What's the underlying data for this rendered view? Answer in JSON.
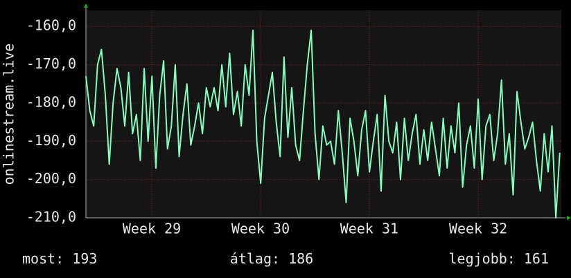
{
  "chart_data": {
    "type": "line",
    "y_label": "onlinestream.live",
    "ylim": [
      -210,
      -155.8
    ],
    "yticks": [
      {
        "value": -210,
        "label": "-210,0"
      },
      {
        "value": -200,
        "label": "-200,0"
      },
      {
        "value": -190,
        "label": "-190,0"
      },
      {
        "value": -180,
        "label": "-180,0"
      },
      {
        "value": -170,
        "label": "-170,0"
      },
      {
        "value": -160,
        "label": "-160,0"
      }
    ],
    "xlim": [
      0,
      30.6
    ],
    "xticks": [
      {
        "value": 4.24,
        "label": "Week 29"
      },
      {
        "value": 11.24,
        "label": "Week 30"
      },
      {
        "value": 18.24,
        "label": "Week 31"
      },
      {
        "value": 25.25,
        "label": "Week 32"
      }
    ],
    "grid": true,
    "x": [
      0,
      0.25,
      0.5,
      0.75,
      1,
      1.25,
      1.5,
      1.75,
      2,
      2.25,
      2.5,
      2.75,
      3,
      3.25,
      3.5,
      3.75,
      4,
      4.25,
      4.5,
      4.75,
      5,
      5.25,
      5.5,
      5.75,
      6,
      6.25,
      6.5,
      6.75,
      7,
      7.25,
      7.5,
      7.75,
      8,
      8.25,
      8.5,
      8.75,
      9,
      9.25,
      9.5,
      9.75,
      10,
      10.25,
      10.5,
      10.75,
      11,
      11.25,
      11.5,
      11.75,
      12,
      12.25,
      12.5,
      12.75,
      13,
      13.25,
      13.5,
      13.75,
      14,
      14.25,
      14.5,
      14.75,
      15,
      15.25,
      15.5,
      15.75,
      16,
      16.25,
      16.5,
      16.75,
      17,
      17.25,
      17.5,
      17.75,
      18,
      18.25,
      18.5,
      18.75,
      19,
      19.25,
      19.5,
      19.75,
      20,
      20.25,
      20.5,
      20.75,
      21,
      21.25,
      21.5,
      21.75,
      22,
      22.25,
      22.5,
      22.75,
      23,
      23.25,
      23.5,
      23.75,
      24,
      24.25,
      24.5,
      24.75,
      25,
      25.25,
      25.5,
      25.75,
      26,
      26.25,
      26.5,
      26.75,
      27,
      27.25,
      27.5,
      27.75,
      28,
      28.25,
      28.5,
      28.75,
      29,
      29.25,
      29.5,
      29.75,
      30,
      30.25,
      30.5
    ],
    "series": [
      {
        "color": "#80ffc0",
        "values": [
          -173,
          -182,
          -186,
          -170,
          -166,
          -178,
          -196,
          -180,
          -171,
          -176,
          -186,
          -172,
          -188,
          -183,
          -195,
          -171,
          -190,
          -173,
          -197,
          -178,
          -169,
          -192,
          -186,
          -170,
          -194,
          -183,
          -175,
          -191,
          -186,
          -180,
          -188,
          -176,
          -181,
          -176,
          -182,
          -170,
          -181,
          -167,
          -183,
          -177,
          -186,
          -170,
          -178,
          -161,
          -190,
          -201,
          -184,
          -178,
          -172,
          -185,
          -194,
          -168,
          -189,
          -176,
          -191,
          -195,
          -182,
          -170,
          -161,
          -188,
          -200,
          -186,
          -191,
          -190,
          -196,
          -182,
          -193,
          -206,
          -184,
          -190,
          -199,
          -187,
          -182,
          -198,
          -190,
          -183,
          -203,
          -178,
          -190,
          -193,
          -185,
          -200,
          -184,
          -195,
          -188,
          -183,
          -196,
          -187,
          -195,
          -185,
          -192,
          -199,
          -184,
          -197,
          -186,
          -193,
          -180,
          -202,
          -191,
          -186,
          -197,
          -179,
          -200,
          -186,
          -183,
          -195,
          -188,
          -174,
          -196,
          -188,
          -204,
          -177,
          -185,
          -192,
          -189,
          -185,
          -195,
          -203,
          -188,
          -198,
          -186,
          -210,
          -193
        ]
      }
    ],
    "stats": [
      {
        "label": "most:",
        "value": 193
      },
      {
        "label": "átlag:",
        "value": 186
      },
      {
        "label": "legjobb:",
        "value": 161
      }
    ]
  }
}
